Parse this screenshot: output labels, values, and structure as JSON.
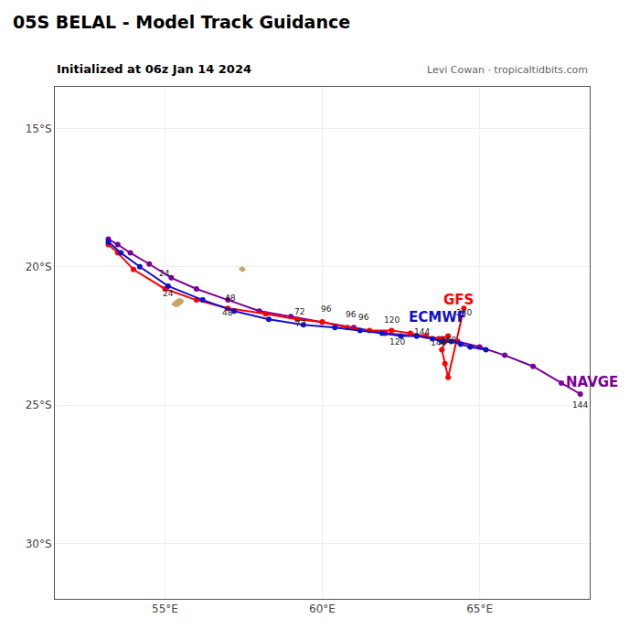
{
  "chart_data": {
    "type": "line",
    "title": "05S BELAL - Model Track Guidance",
    "subtitle": [
      "Initialized at 06z Jan 14 2024",
      "Levi Cowan · tropicaltidbits.com"
    ],
    "xlim": [
      51.5,
      68.5
    ],
    "ylim": [
      -32.0,
      -13.5
    ],
    "xticks": [
      {
        "value": 55,
        "label": "55°E"
      },
      {
        "value": 60,
        "label": "60°E"
      },
      {
        "value": 65,
        "label": "65°E"
      }
    ],
    "yticks": [
      {
        "value": -15,
        "label": "15°S"
      },
      {
        "value": -20,
        "label": "20°S"
      },
      {
        "value": -25,
        "label": "25°S"
      },
      {
        "value": -30,
        "label": "30°S"
      }
    ],
    "grid": true,
    "series": [
      {
        "type": "area",
        "color": "#c8a464",
        "x": [
          55.21,
          55.27,
          55.34,
          55.43,
          55.5,
          55.56,
          55.6,
          55.58,
          55.53,
          55.45,
          55.36,
          55.26,
          55.2,
          55.21
        ],
        "values": [
          -21.38,
          -21.43,
          -21.46,
          -21.44,
          -21.39,
          -21.33,
          -21.25,
          -21.19,
          -21.15,
          -21.13,
          -21.18,
          -21.28,
          -21.35,
          -21.38
        ]
      },
      {
        "type": "area",
        "color": "#c8a464",
        "x": [
          57.34,
          57.38,
          57.44,
          57.5,
          57.54,
          57.56,
          57.52,
          57.47,
          57.4,
          57.34
        ],
        "values": [
          -20.07,
          -20.12,
          -20.18,
          -20.18,
          -20.14,
          -20.07,
          -20.02,
          -19.98,
          -20.01,
          -20.07
        ]
      },
      {
        "type": "line",
        "name": "NAVGE",
        "color": "#7b0099",
        "marker": "circle",
        "x": [
          53.2,
          53.5,
          53.9,
          54.5,
          55.2,
          56.0,
          57.0,
          58.0,
          59.0,
          60.0,
          61.0,
          62.0,
          63.0,
          63.8,
          64.3,
          65.0,
          65.8,
          66.7,
          67.6,
          68.2
        ],
        "values": [
          -19.0,
          -19.2,
          -19.5,
          -19.9,
          -20.4,
          -20.8,
          -21.2,
          -21.6,
          -21.8,
          -22.0,
          -22.2,
          -22.4,
          -22.5,
          -22.6,
          -22.7,
          -22.9,
          -23.2,
          -23.6,
          -24.2,
          -24.6
        ]
      },
      {
        "type": "line",
        "name": "GFS",
        "color": "#ff0000",
        "marker": "circle",
        "x": [
          53.2,
          53.5,
          54.0,
          55.0,
          56.0,
          57.0,
          58.2,
          59.2,
          60.0,
          60.8,
          61.5,
          62.2,
          62.8,
          63.3,
          63.7,
          64.0,
          63.9,
          63.8,
          63.9,
          64.0,
          64.5
        ],
        "values": [
          -19.2,
          -19.5,
          -20.1,
          -20.8,
          -21.2,
          -21.5,
          -21.7,
          -21.9,
          -22.0,
          -22.2,
          -22.3,
          -22.3,
          -22.4,
          -22.5,
          -22.6,
          -22.5,
          -22.7,
          -23.0,
          -23.5,
          -24.0,
          -21.5
        ]
      },
      {
        "type": "line",
        "name": "ECMWF",
        "color": "#1010cc",
        "marker": "circle",
        "x": [
          53.2,
          53.6,
          54.2,
          55.1,
          56.2,
          57.2,
          58.3,
          59.4,
          60.4,
          61.2,
          61.9,
          62.5,
          63.0,
          63.5,
          63.8,
          64.1,
          64.4,
          64.7,
          65.2
        ],
        "values": [
          -19.1,
          -19.5,
          -20.0,
          -20.7,
          -21.2,
          -21.6,
          -21.9,
          -22.1,
          -22.2,
          -22.3,
          -22.4,
          -22.5,
          -22.5,
          -22.6,
          -22.7,
          -22.7,
          -22.8,
          -22.9,
          -23.0
        ]
      }
    ],
    "annotations": [
      {
        "text": "24",
        "x": 55.0,
        "y": -20.8
      },
      {
        "text": "48",
        "x": 57.0,
        "y": -21.5
      },
      {
        "text": "72",
        "x": 59.2,
        "y": -21.9
      },
      {
        "text": "96",
        "x": 60.8,
        "y": -22.2
      },
      {
        "text": "168",
        "x": 64.0,
        "y": -22.5
      },
      {
        "text": "240",
        "x": 64.5,
        "y": -21.5
      },
      {
        "text": "24",
        "x": 55.1,
        "y": -20.7
      },
      {
        "text": "48",
        "x": 57.2,
        "y": -21.6
      },
      {
        "text": "72",
        "x": 59.4,
        "y": -22.1
      },
      {
        "text": "96",
        "x": 61.2,
        "y": -22.3
      },
      {
        "text": "120",
        "x": 62.5,
        "y": -22.5
      },
      {
        "text": "144",
        "x": 63.5,
        "y": -22.6
      },
      {
        "text": "96",
        "x": 60.0,
        "y": -22.0
      },
      {
        "text": "120",
        "x": 62.0,
        "y": -22.4
      },
      {
        "text": "144",
        "x": 63.8,
        "y": -22.6
      },
      {
        "text": "GFS",
        "x": 63.8,
        "y": -21.55,
        "color": "#ff0000"
      },
      {
        "text": "ECMWF",
        "x": 62.7,
        "y": -22.18,
        "color": "#1010cc"
      },
      {
        "text": "NAVGE",
        "x": 67.7,
        "y": -24.55,
        "color": "#7b0099"
      },
      {
        "text": "144",
        "x": 68.2,
        "y": -24.75
      }
    ]
  }
}
